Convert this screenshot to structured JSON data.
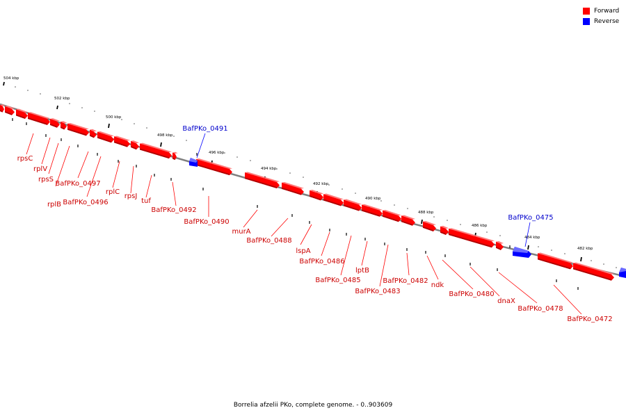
{
  "colors": {
    "forward": "#ff0000",
    "forward_top": "#ff7a7a",
    "forward_dark": "#b00000",
    "reverse": "#0000ff",
    "reverse_top": "#6b6bff",
    "reverse_dark": "#0000a0",
    "label_forward": "#cc0000",
    "label_reverse": "#0000cc",
    "backbone": "#808080"
  },
  "legend": [
    {
      "label": "Forward",
      "color": "#ff0000"
    },
    {
      "label": "Reverse",
      "color": "#0000ff"
    }
  ],
  "caption": "Borrelia afzelii PKo, complete genome. - 0..903609",
  "scale_labels": [
    "504 kbp",
    "502 kbp",
    "500 kbp",
    "498 kbp",
    "496 kbp",
    "494 kbp",
    "492 kbp",
    "490 kbp",
    "488 kbp",
    "486 kbp",
    "484 kbp",
    "482 kbp"
  ],
  "gene_labels": {
    "rpsC": "rpsC",
    "rplV": "rplV",
    "rpsS": "rpsS",
    "rplB": "rplB",
    "BafPKo_0497": "BafPKo_0497",
    "BafPKo_0496": "BafPKo_0496",
    "rplC": "rplC",
    "rpsJ": "rpsJ",
    "tuf": "tuf",
    "BafPKo_0492": "BafPKo_0492",
    "BafPKo_0491": "BafPKo_0491",
    "BafPKo_0490": "BafPKo_0490",
    "murA": "murA",
    "BafPKo_0488": "BafPKo_0488",
    "lspA": "lspA",
    "BafPKo_0486": "BafPKo_0486",
    "BafPKo_0485": "BafPKo_0485",
    "lptB": "lptB",
    "BafPKo_0483": "BafPKo_0483",
    "BafPKo_0482": "BafPKo_0482",
    "ndk": "ndk",
    "BafPKo_0480": "BafPKo_0480",
    "dnaX": "dnaX",
    "BafPKo_0478": "BafPKo_0478",
    "BafPKo_0475": "BafPKo_0475",
    "BafPKo_0472": "BafPKo_0472"
  }
}
